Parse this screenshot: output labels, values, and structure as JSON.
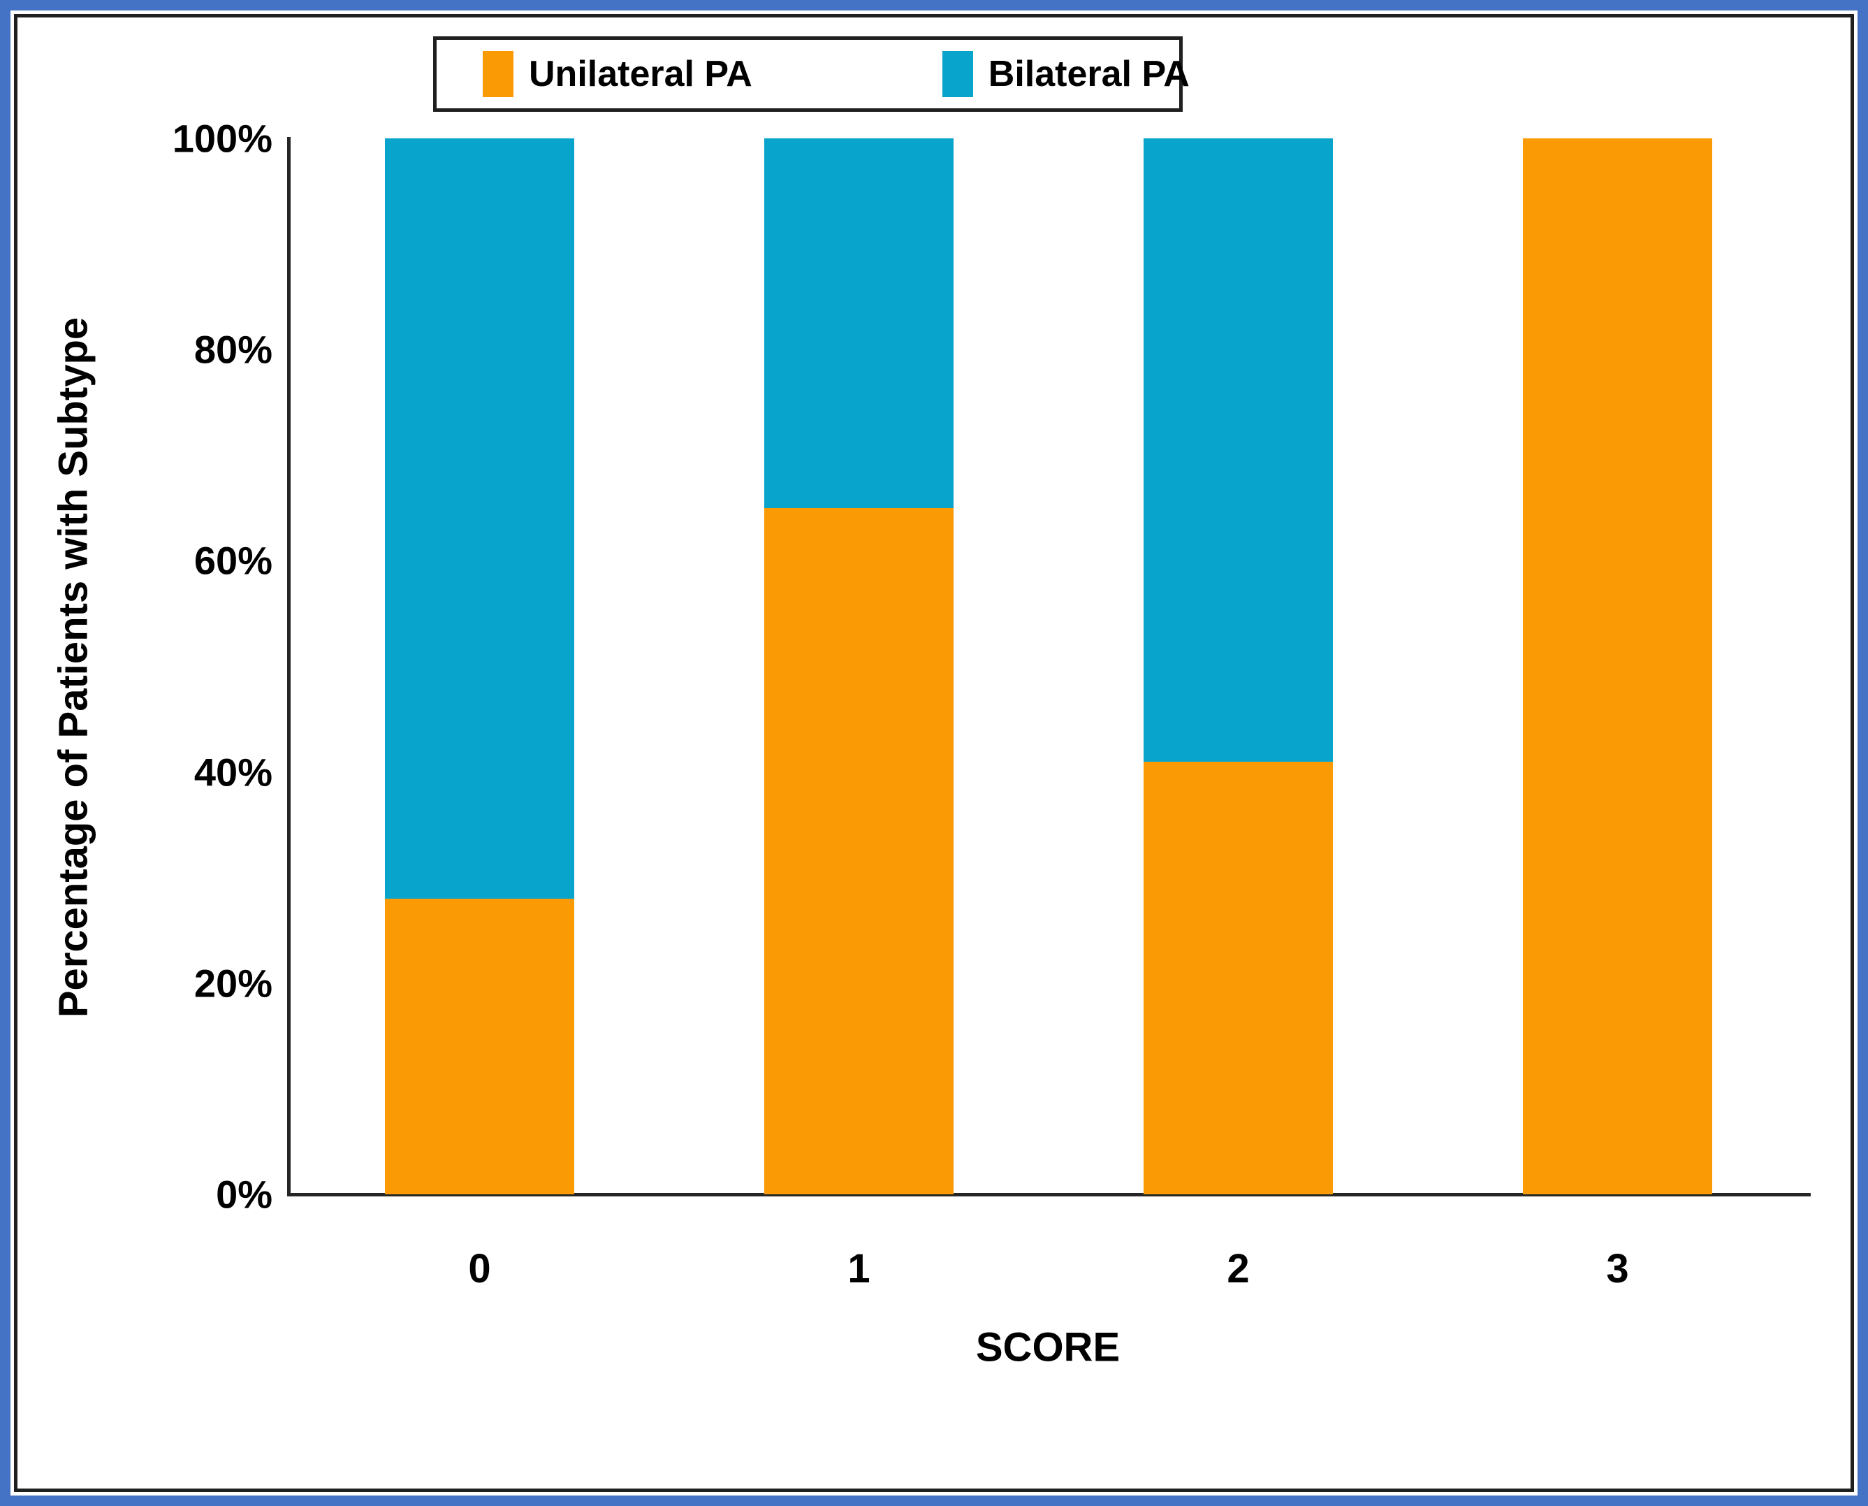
{
  "frame": {
    "outer_border_color": "#4472C4",
    "inner_border_color": "#1f1f1f",
    "background": "#ffffff"
  },
  "chart_data": {
    "type": "bar",
    "stacked": true,
    "percent_stacked": true,
    "categories": [
      "0",
      "1",
      "2",
      "3"
    ],
    "series": [
      {
        "name": "Unilateral PA",
        "color": "#FA9B05",
        "values": [
          28,
          65,
          41,
          100
        ]
      },
      {
        "name": "Bilateral PA",
        "color": "#09A4CB",
        "values": [
          72,
          35,
          59,
          0
        ]
      }
    ],
    "title": "",
    "xlabel": "SCORE",
    "ylabel": "Percentage of Patients with Subtype",
    "y_ticks": [
      "0%",
      "20%",
      "40%",
      "60%",
      "80%",
      "100%"
    ],
    "ylim": [
      0,
      100
    ],
    "legend_position": "top",
    "grid": false,
    "axis_color": "#262626",
    "text_color": "#000000"
  }
}
